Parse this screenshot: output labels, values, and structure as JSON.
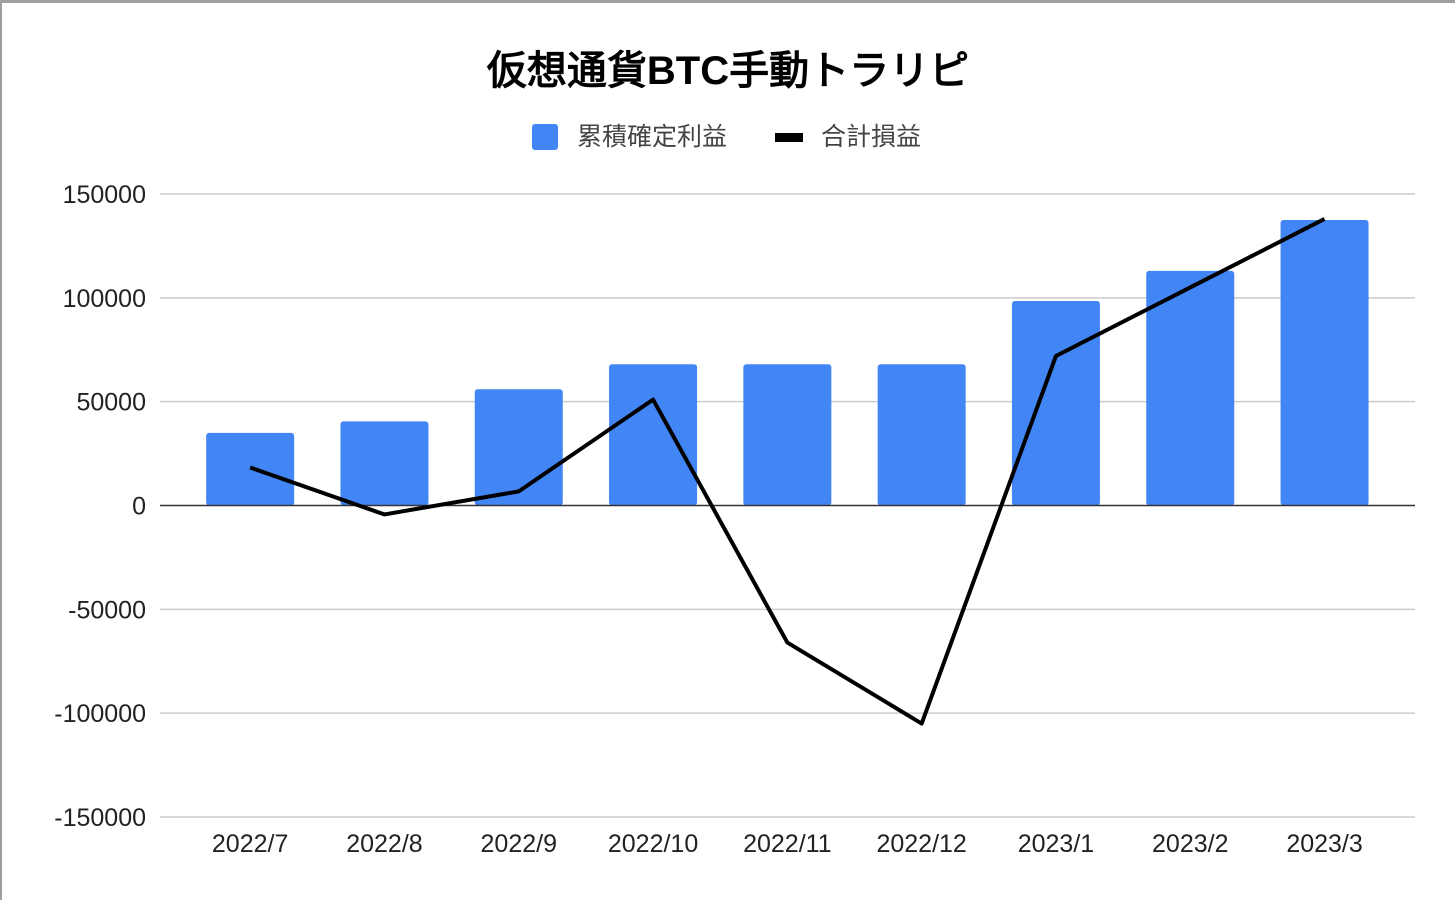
{
  "chart_data": {
    "type": "bar+line",
    "title": "仮想通貨BTC手動トラリピ",
    "legend_position": "top",
    "categories": [
      "2022/7",
      "2022/8",
      "2022/9",
      "2022/10",
      "2022/11",
      "2022/12",
      "2023/1",
      "2023/2",
      "2023/3"
    ],
    "series": [
      {
        "name": "累積確定利益",
        "type": "bar",
        "color": "#4285f4",
        "values": [
          35000,
          40500,
          56000,
          68000,
          68000,
          68000,
          98500,
          113000,
          137500
        ]
      },
      {
        "name": "合計損益",
        "type": "line",
        "color": "#000000",
        "values": [
          18300,
          -4300,
          6800,
          51000,
          -66000,
          -105000,
          72000,
          105000,
          138000
        ]
      }
    ],
    "ylim": [
      -150000,
      150000
    ],
    "yticks": [
      150000,
      100000,
      50000,
      0,
      -50000,
      -100000,
      -150000
    ],
    "grid": true,
    "xlabel": "",
    "ylabel": ""
  }
}
